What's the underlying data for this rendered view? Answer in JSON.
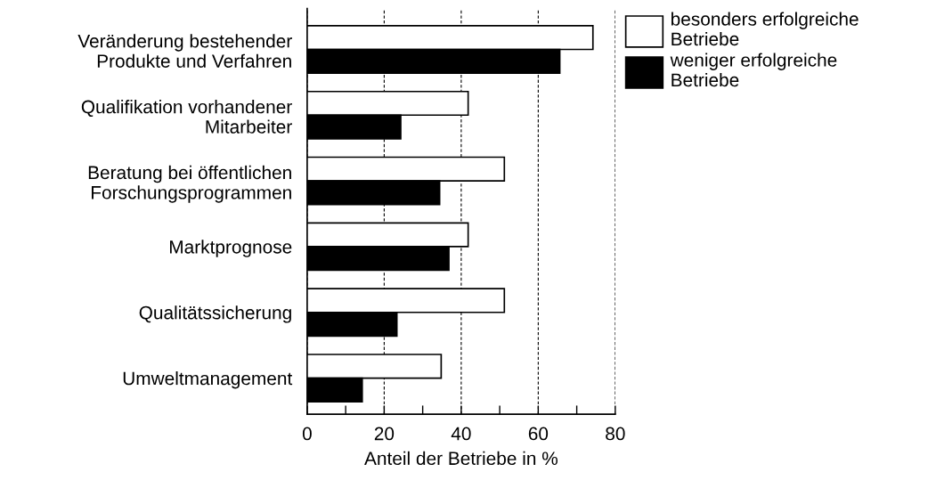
{
  "chart_data": {
    "type": "bar",
    "orientation": "horizontal",
    "xlabel": "Anteil der Betriebe in %",
    "categories": [
      "Veränderung bestehender\nProdukte und Verfahren",
      "Qualifikation vorhandener\nMitarbeiter",
      "Beratung bei öffentlichen\nForschungsprogrammen",
      "Marktprognose",
      "Qualitätssicherung",
      "Umweltmanagement"
    ],
    "series": [
      {
        "name": "besonders erfolgreiche\nBetriebe",
        "color": "#ffffff",
        "values": [
          74.2,
          41.8,
          51.2,
          41.8,
          51.2,
          34.8
        ]
      },
      {
        "name": "weniger erfolgreiche\nBetriebe",
        "color": "#000000",
        "values": [
          65.6,
          24.3,
          34.4,
          36.8,
          23.3,
          14.3
        ]
      }
    ],
    "xlim": [
      0,
      80
    ],
    "xticks": [
      0,
      {
        "value": 10,
        "label": null
      },
      20,
      {
        "value": 30,
        "label": null
      },
      40,
      {
        "value": 50,
        "label": null
      },
      60,
      {
        "value": 70,
        "label": null
      },
      80
    ],
    "grid": "x",
    "legend": "top right"
  }
}
